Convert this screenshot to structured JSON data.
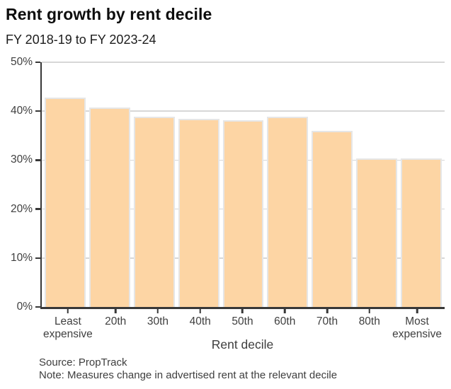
{
  "title": "Rent growth by rent decile",
  "subtitle": "FY 2018-19 to FY 2023-24",
  "chart_data": {
    "type": "bar",
    "categories": [
      "Least expensive",
      "20th",
      "30th",
      "40th",
      "50th",
      "60th",
      "70th",
      "80th",
      "Most expensive"
    ],
    "values": [
      42.8,
      40.7,
      38.9,
      38.4,
      38.2,
      38.9,
      36.0,
      30.4,
      30.4
    ],
    "title": "Rent growth by rent decile",
    "subtitle": "FY 2018-19 to FY 2023-24",
    "xlabel": "Rent decile",
    "ylabel": "",
    "ylim": [
      0,
      50
    ],
    "yticks": [
      0,
      10,
      20,
      30,
      40,
      50
    ],
    "ytick_suffix": "%",
    "grid": true,
    "legend": "none",
    "bar_color": "#fdd5a4",
    "bar_border_color": "#e6e6e6",
    "axis_color": "#383838",
    "gridline_color": "#d7d7d7"
  },
  "footer": {
    "source": "Source: PropTrack",
    "note": "Note: Measures change in advertised rent at the relevant decile"
  }
}
